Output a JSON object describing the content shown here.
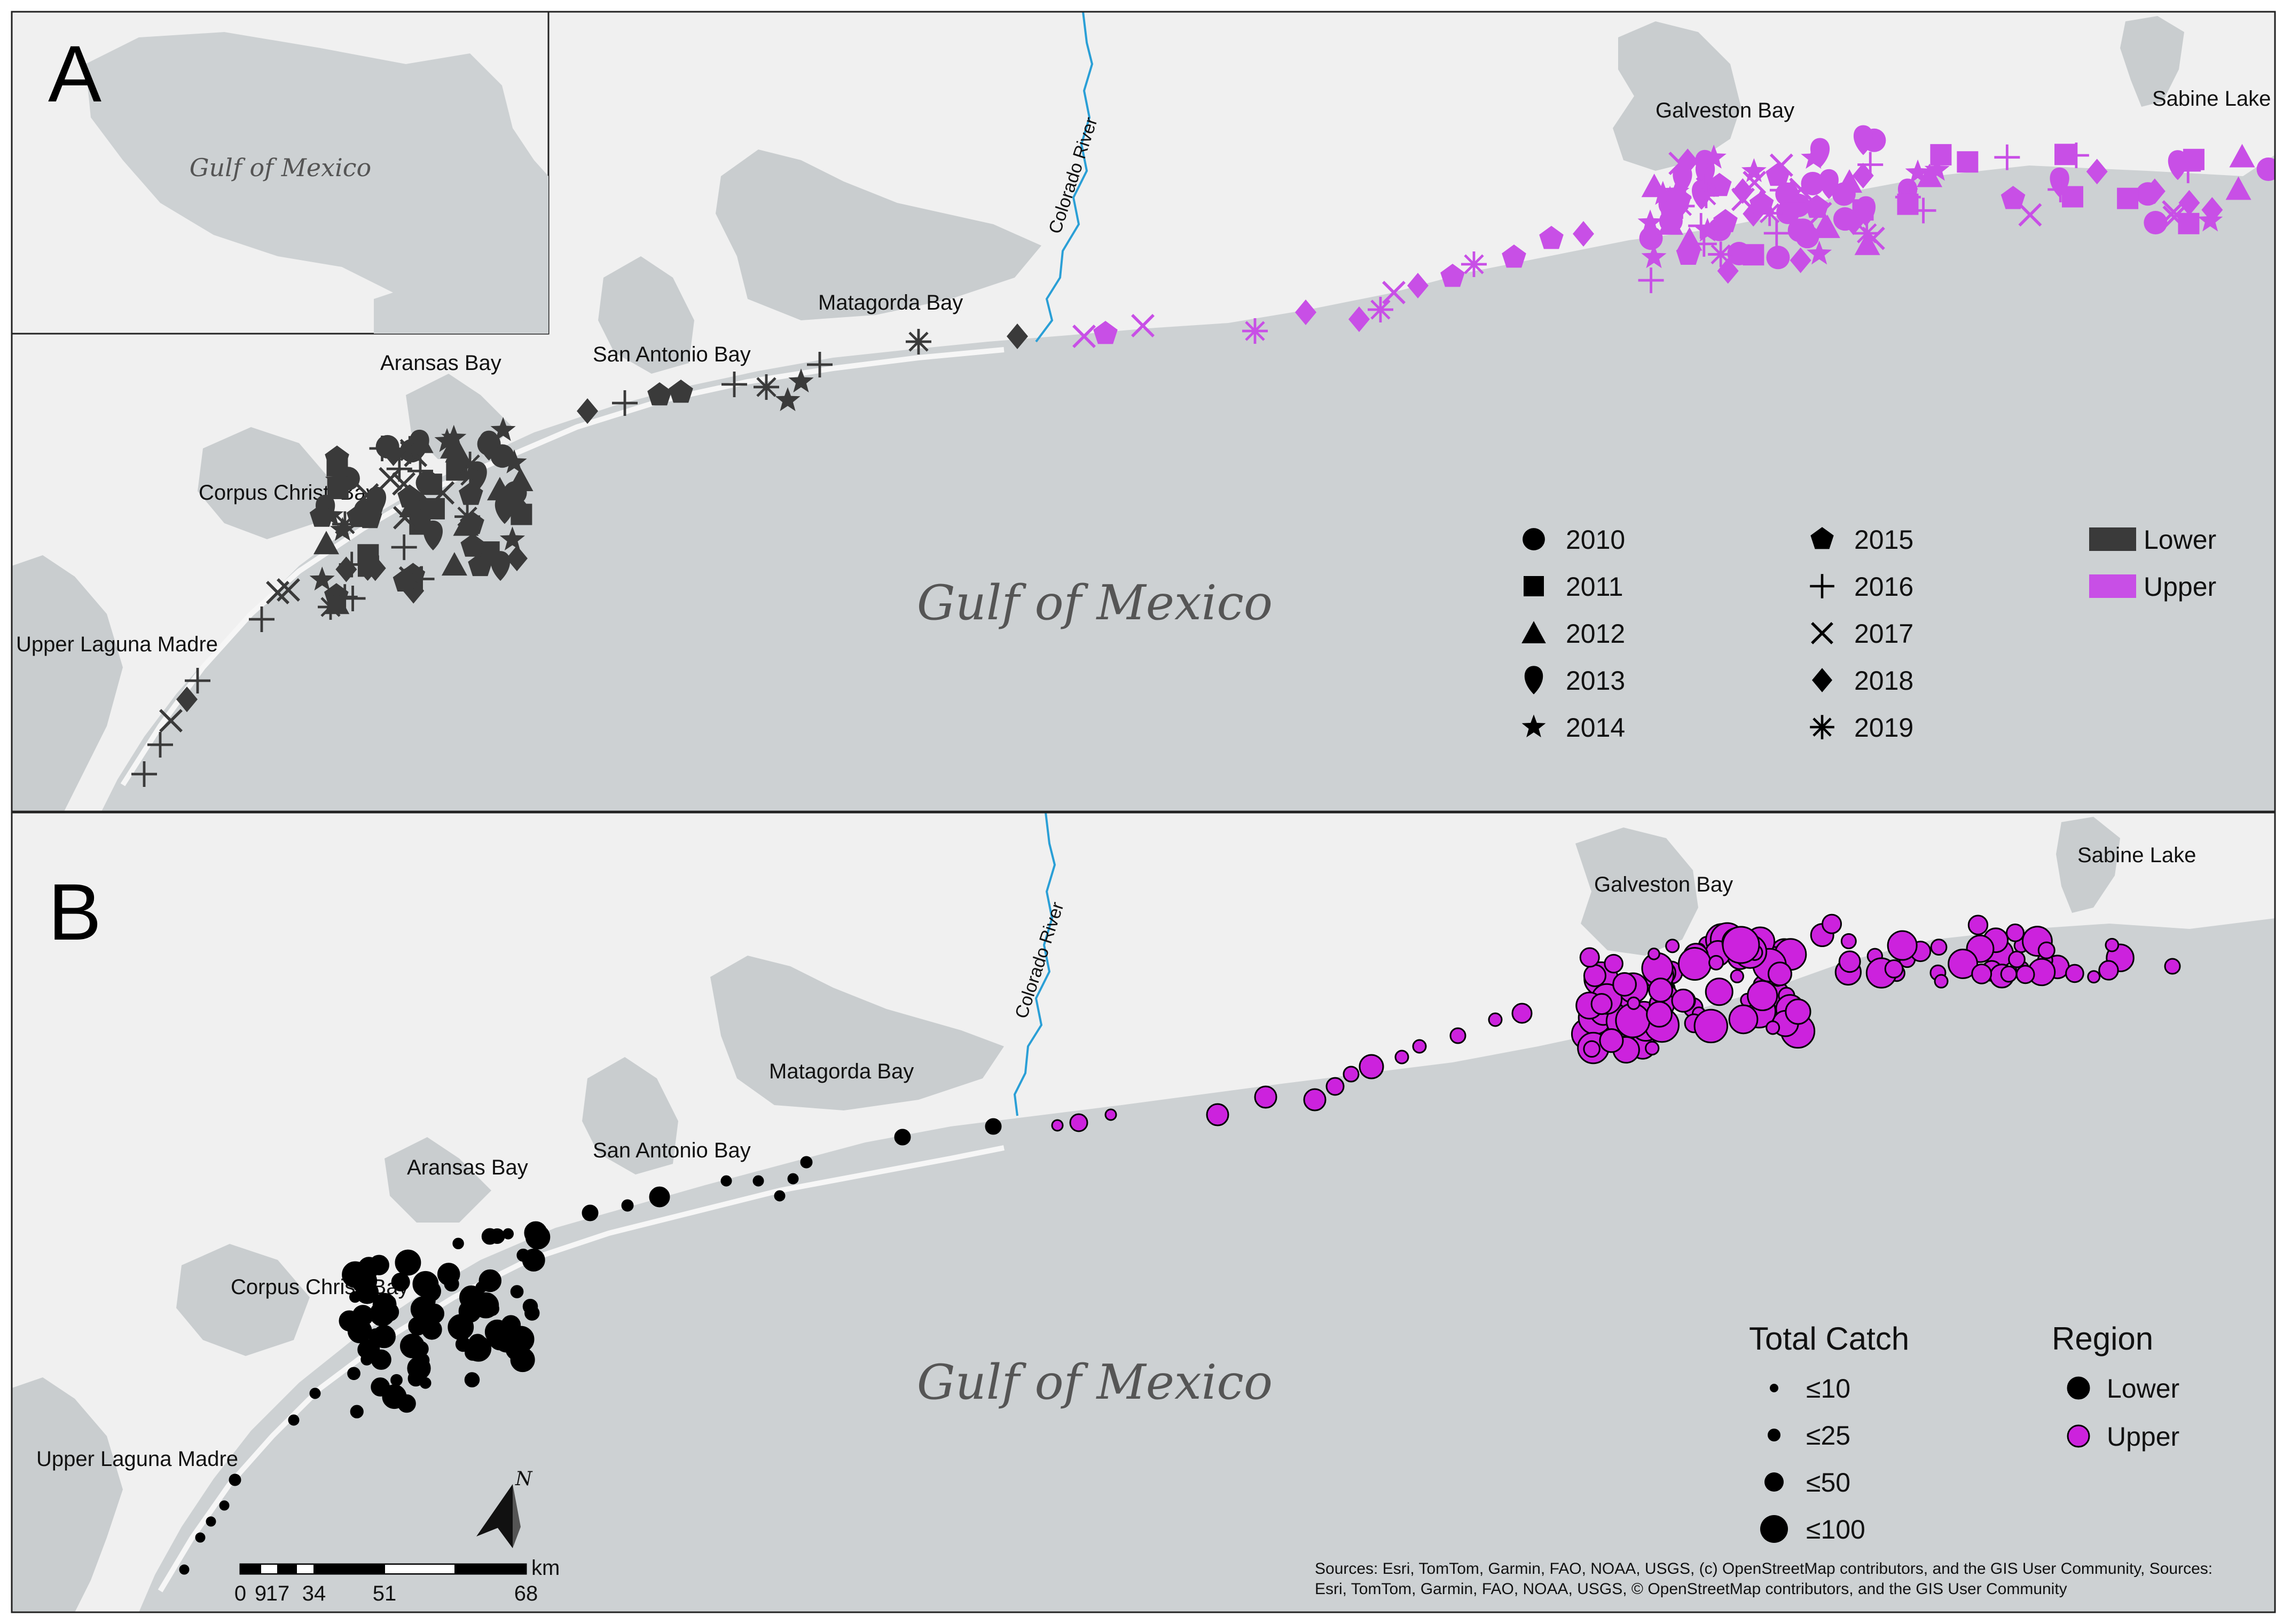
{
  "panels": [
    {
      "letter": "A",
      "inset_label": "Gulf of Mexico",
      "gulf_label": "Gulf of Mexico",
      "place_labels": [
        "Galveston Bay",
        "Sabine Lake",
        "Matagorda Bay",
        "San Antonio Bay",
        "Aransas Bay",
        "Corpus Christi Bay",
        "Upper Laguna Madre"
      ],
      "river_label": "Colorado River"
    },
    {
      "letter": "B",
      "gulf_label": "Gulf of Mexico",
      "place_labels": [
        "Galveston Bay",
        "Sabine Lake",
        "Matagorda Bay",
        "San Antonio Bay",
        "Aransas Bay",
        "Corpus Christi Bay",
        "Upper Laguna Madre"
      ],
      "river_label": "Colorado River"
    }
  ],
  "legend_year": [
    {
      "year": "2010",
      "shape": "circle"
    },
    {
      "year": "2011",
      "shape": "square"
    },
    {
      "year": "2012",
      "shape": "triangle"
    },
    {
      "year": "2013",
      "shape": "pin"
    },
    {
      "year": "2014",
      "shape": "star"
    },
    {
      "year": "2015",
      "shape": "pentagon"
    },
    {
      "year": "2016",
      "shape": "plus"
    },
    {
      "year": "2017",
      "shape": "x"
    },
    {
      "year": "2018",
      "shape": "diamond"
    },
    {
      "year": "2019",
      "shape": "asterisk"
    }
  ],
  "legend_region_a": [
    {
      "name": "Lower",
      "color": "#3a3a3a"
    },
    {
      "name": "Upper",
      "color": "#c84fe6"
    }
  ],
  "legend_catch": {
    "title": "Total Catch",
    "items": [
      "≤10",
      "≤25",
      "≤50",
      "≤100"
    ]
  },
  "legend_region_b": {
    "title": "Region",
    "items": [
      {
        "name": "Lower",
        "color": "#000000"
      },
      {
        "name": "Upper",
        "color": "#cc22dd"
      }
    ]
  },
  "scale_bar": {
    "ticks": [
      "0",
      "9",
      "17",
      "34",
      "51",
      "68"
    ],
    "unit": "km"
  },
  "north_label": "N",
  "sources": [
    "Sources:  Esri, TomTom, Garmin, FAO, NOAA, USGS, (c) OpenStreetMap contributors, and the GIS User Community, Sources:",
    "Esri, TomTom, Garmin, FAO, NOAA, USGS, © OpenStreetMap contributors, and the GIS User Community"
  ],
  "colors": {
    "sea": "#cdd1d3",
    "land": "#f0f0f0",
    "bay": "#c9cdcf",
    "lower": "#3a3a3a",
    "upper": "#c84fe6",
    "upper_b": "#cc22dd",
    "river": "#2a9fd6"
  }
}
